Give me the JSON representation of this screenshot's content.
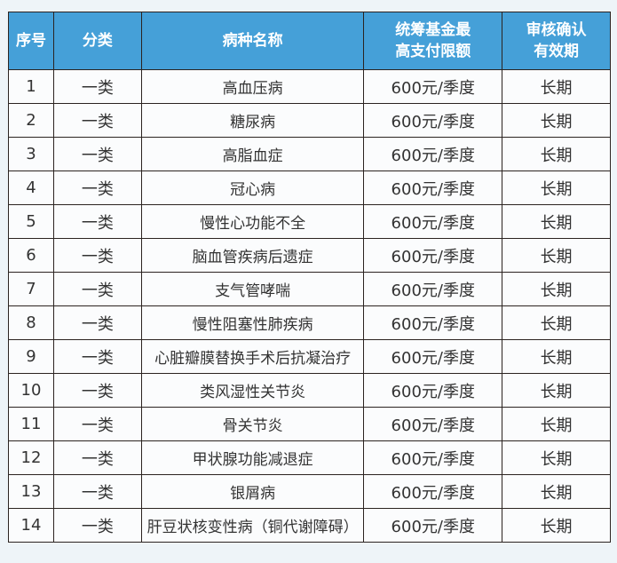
{
  "header": {
    "col1": "序号",
    "col2": "分类",
    "col3": "病种名称",
    "col4a": "统筹基金最",
    "col4b": "高支付限额",
    "col5a": "审核确认",
    "col5b": "有效期"
  },
  "colors": {
    "header_bg": "#45a0d8",
    "border": "#2b2320"
  },
  "rows": [
    {
      "no": "1",
      "cat": "一类",
      "name": "高血压病",
      "limit": "600元/季度",
      "valid": "长期"
    },
    {
      "no": "2",
      "cat": "一类",
      "name": "糖尿病",
      "limit": "600元/季度",
      "valid": "长期"
    },
    {
      "no": "3",
      "cat": "一类",
      "name": "高脂血症",
      "limit": "600元/季度",
      "valid": "长期"
    },
    {
      "no": "4",
      "cat": "一类",
      "name": "冠心病",
      "limit": "600元/季度",
      "valid": "长期"
    },
    {
      "no": "5",
      "cat": "一类",
      "name": "慢性心功能不全",
      "limit": "600元/季度",
      "valid": "长期"
    },
    {
      "no": "6",
      "cat": "一类",
      "name": "脑血管疾病后遗症",
      "limit": "600元/季度",
      "valid": "长期"
    },
    {
      "no": "7",
      "cat": "一类",
      "name": "支气管哮喘",
      "limit": "600元/季度",
      "valid": "长期"
    },
    {
      "no": "8",
      "cat": "一类",
      "name": "慢性阻塞性肺疾病",
      "limit": "600元/季度",
      "valid": "长期"
    },
    {
      "no": "9",
      "cat": "一类",
      "name": "心脏瓣膜替换手术后抗凝治疗",
      "limit": "600元/季度",
      "valid": "长期"
    },
    {
      "no": "10",
      "cat": "一类",
      "name": "类风湿性关节炎",
      "limit": "600元/季度",
      "valid": "长期"
    },
    {
      "no": "11",
      "cat": "一类",
      "name": "骨关节炎",
      "limit": "600元/季度",
      "valid": "长期"
    },
    {
      "no": "12",
      "cat": "一类",
      "name": "甲状腺功能减退症",
      "limit": "600元/季度",
      "valid": "长期"
    },
    {
      "no": "13",
      "cat": "一类",
      "name": "银屑病",
      "limit": "600元/季度",
      "valid": "长期"
    },
    {
      "no": "14",
      "cat": "一类",
      "name": "肝豆状核变性病（铜代谢障碍）",
      "limit": "600元/季度",
      "valid": "长期"
    }
  ]
}
